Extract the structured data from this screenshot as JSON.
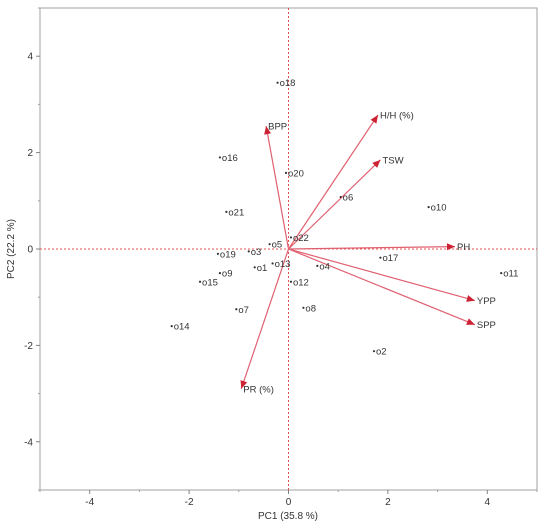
{
  "chart_data": {
    "type": "scatter",
    "subtype": "pca-biplot",
    "title": "",
    "xlabel": "PC1  (35.8 %)",
    "ylabel": "PC2  (22.2 %)",
    "xlim": [
      -5,
      5
    ],
    "ylim": [
      -5,
      5
    ],
    "x_ticks": [
      -4,
      -2,
      0,
      2,
      4
    ],
    "y_ticks": [
      4,
      2,
      0,
      -2,
      -4
    ],
    "reference_lines": {
      "x": 0,
      "y": 0,
      "color": "#e05050",
      "style": "dotted"
    },
    "vector_color": "#e06070",
    "points": [
      {
        "label": "o1",
        "x": -0.68,
        "y": -0.38
      },
      {
        "label": "o2",
        "x": 1.72,
        "y": -2.12
      },
      {
        "label": "o3",
        "x": -0.8,
        "y": -0.05
      },
      {
        "label": "o4",
        "x": 0.58,
        "y": -0.35
      },
      {
        "label": "o5",
        "x": -0.38,
        "y": 0.1
      },
      {
        "label": "o6",
        "x": 1.05,
        "y": 1.08
      },
      {
        "label": "o7",
        "x": -1.05,
        "y": -1.25
      },
      {
        "label": "o8",
        "x": 0.3,
        "y": -1.22
      },
      {
        "label": "o9",
        "x": -1.38,
        "y": -0.5
      },
      {
        "label": "o10",
        "x": 2.82,
        "y": 0.87
      },
      {
        "label": "o11",
        "x": 4.28,
        "y": -0.5
      },
      {
        "label": "o12",
        "x": 0.05,
        "y": -0.68
      },
      {
        "label": "o13",
        "x": -0.32,
        "y": -0.3
      },
      {
        "label": "o14",
        "x": -2.35,
        "y": -1.6
      },
      {
        "label": "o15",
        "x": -1.78,
        "y": -0.68
      },
      {
        "label": "o16",
        "x": -1.38,
        "y": 1.9
      },
      {
        "label": "o17",
        "x": 1.85,
        "y": -0.18
      },
      {
        "label": "o18",
        "x": -0.22,
        "y": 3.45
      },
      {
        "label": "o19",
        "x": -1.42,
        "y": -0.1
      },
      {
        "label": "o20",
        "x": -0.05,
        "y": 1.58
      },
      {
        "label": "o21",
        "x": -1.25,
        "y": 0.77
      },
      {
        "label": "o22",
        "x": 0.05,
        "y": 0.24
      }
    ],
    "vectors": [
      {
        "label": "BPP",
        "x": -0.45,
        "y": 2.55
      },
      {
        "label": "H/H (%)",
        "x": 1.8,
        "y": 2.78
      },
      {
        "label": "TSW",
        "x": 1.85,
        "y": 1.85
      },
      {
        "label": "PH",
        "x": 3.35,
        "y": 0.05
      },
      {
        "label": "YPP",
        "x": 3.75,
        "y": -1.07
      },
      {
        "label": "SPP",
        "x": 3.75,
        "y": -1.57
      },
      {
        "label": "PR (%)",
        "x": -0.95,
        "y": -2.9
      }
    ]
  }
}
